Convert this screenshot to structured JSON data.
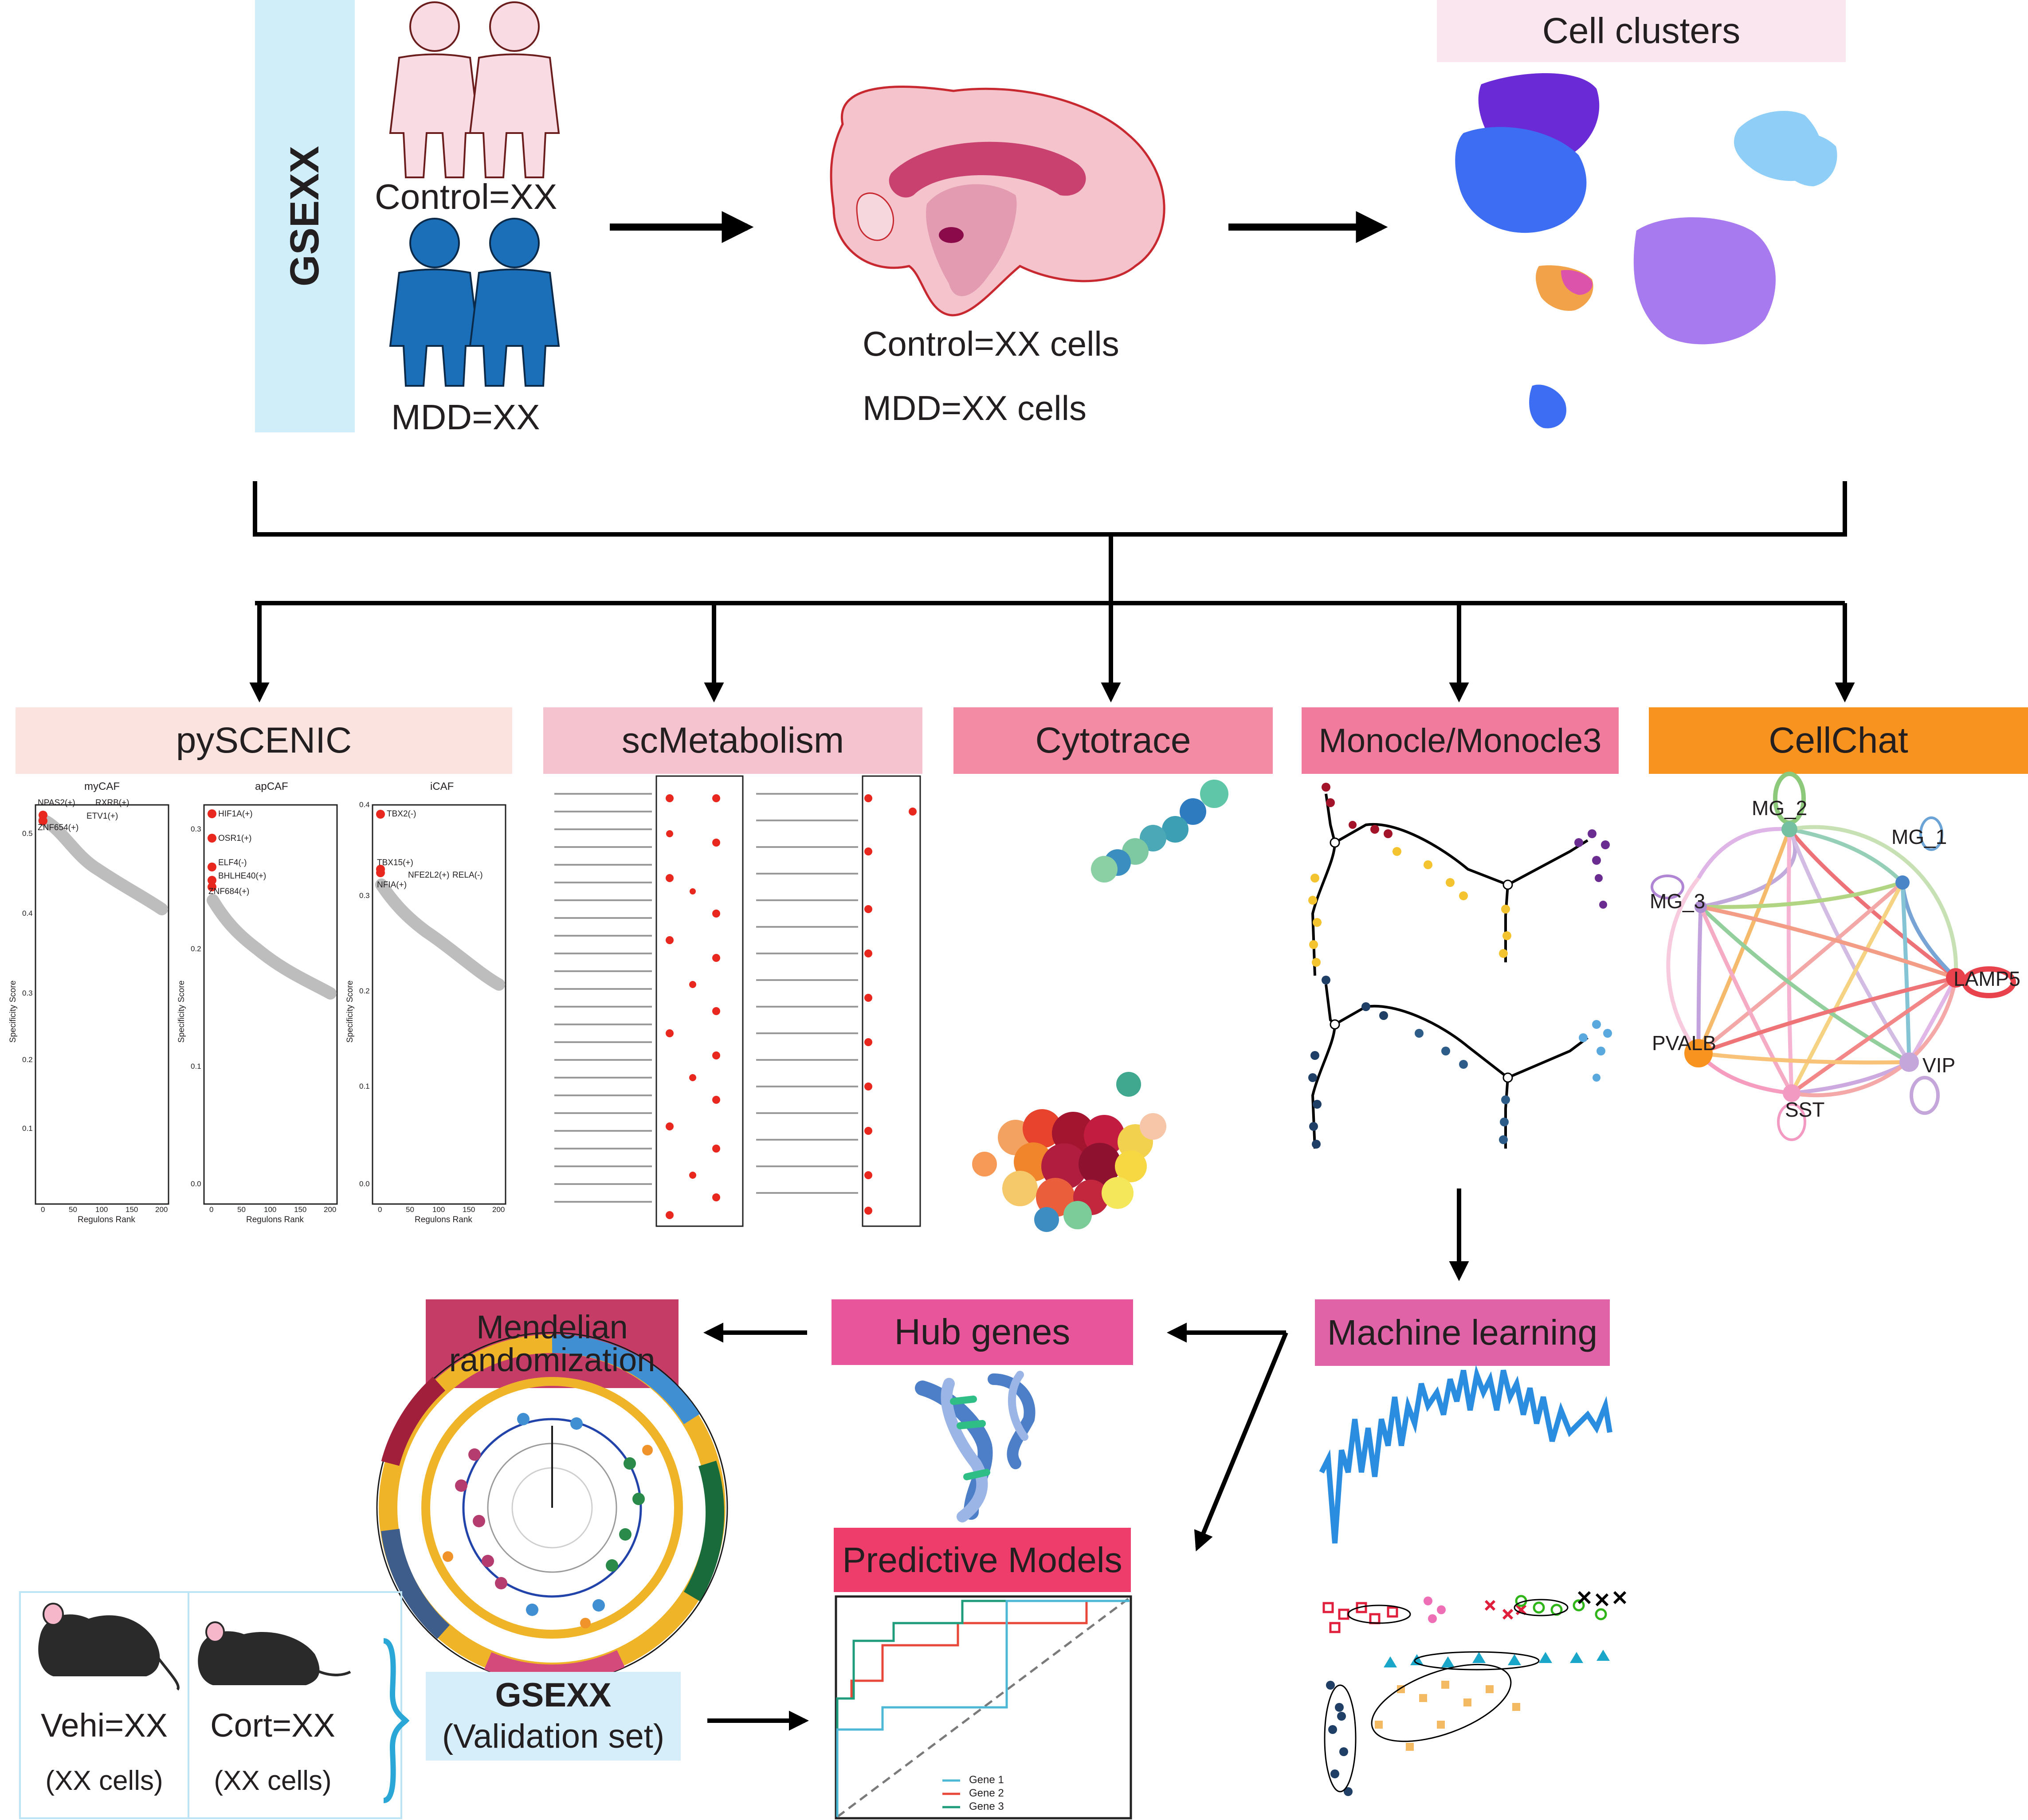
{
  "dataset": {
    "id": "GSEXX"
  },
  "groups": {
    "control": "Control=XX",
    "mdd": "MDD=XX"
  },
  "cells": {
    "control": "Control=XX cells",
    "mdd": "MDD=XX cells"
  },
  "clusters": {
    "title": "Cell clusters"
  },
  "analyses": [
    {
      "label": "pySCENIC",
      "color": "#fbe3e0"
    },
    {
      "label": "scMetabolism",
      "color": "#f5c2cf"
    },
    {
      "label": "Cytotrace",
      "color": "#f48ba4"
    },
    {
      "label": "Monocle/Monocle3",
      "color": "#f07b9c"
    },
    {
      "label": "CellChat",
      "color": "#f7931e"
    }
  ],
  "pyscenic": {
    "panels": [
      {
        "title": "myCAF",
        "yticks": [
          "0.5",
          "0.4",
          "0.3",
          "0.2",
          "0.1"
        ],
        "labels": [
          "NPAS2(+)",
          "RXRB(+)",
          "ETV1(+)",
          "ZNF654(+)"
        ]
      },
      {
        "title": "apCAF",
        "yticks": [
          "0.3",
          "0.2",
          "0.1",
          "0.0"
        ],
        "labels": [
          "HIF1A(+)",
          "OSR1(+)",
          "ELF4(-)",
          "BHLHE40(+)",
          "ZNF684(+)"
        ]
      },
      {
        "title": "iCAF",
        "yticks": [
          "0.4",
          "0.3",
          "0.2",
          "0.1",
          "0.0"
        ],
        "labels": [
          "TBX2(-)",
          "TBX15(+)",
          "NFE2L2(+)",
          "RELA(-)",
          "NFIA(+)"
        ]
      }
    ],
    "xticks": [
      "0",
      "50",
      "100",
      "150",
      "200"
    ],
    "xlabel": "Regulons Rank",
    "ylabel": "Specificity Score"
  },
  "cellchat": {
    "nodes": [
      "MG_2",
      "MG_1",
      "MG_3",
      "LAMP5",
      "PVALB",
      "VIP",
      "SST"
    ]
  },
  "downstream": {
    "mendelian": {
      "label": "Mendelian randomization",
      "color": "#c53d67"
    },
    "hub": {
      "label": "Hub genes",
      "color": "#e9559a"
    },
    "ml": {
      "label": "Machine learning",
      "color": "#e063a8"
    },
    "predictive": {
      "label": "Predictive Models",
      "color": "#ee3d6b"
    }
  },
  "validation": {
    "id": "GSEXX",
    "subtitle": "(Validation set)",
    "vehi": "Vehi=XX",
    "cort": "Cort=XX",
    "cells_vehi": "(XX cells)",
    "cells_cort": "(XX cells)"
  },
  "roc": {
    "legend": [
      "Gene 1",
      "Gene 2",
      "Gene 3"
    ],
    "colors": [
      "#4db8d6",
      "#e8483a",
      "#1f9c7c"
    ]
  },
  "colors": {
    "gsexx_box": "#cfeefa",
    "validation_box": "#d6eefa",
    "control_people": "#f9dce3",
    "mdd_people": "#1b6fb8"
  }
}
